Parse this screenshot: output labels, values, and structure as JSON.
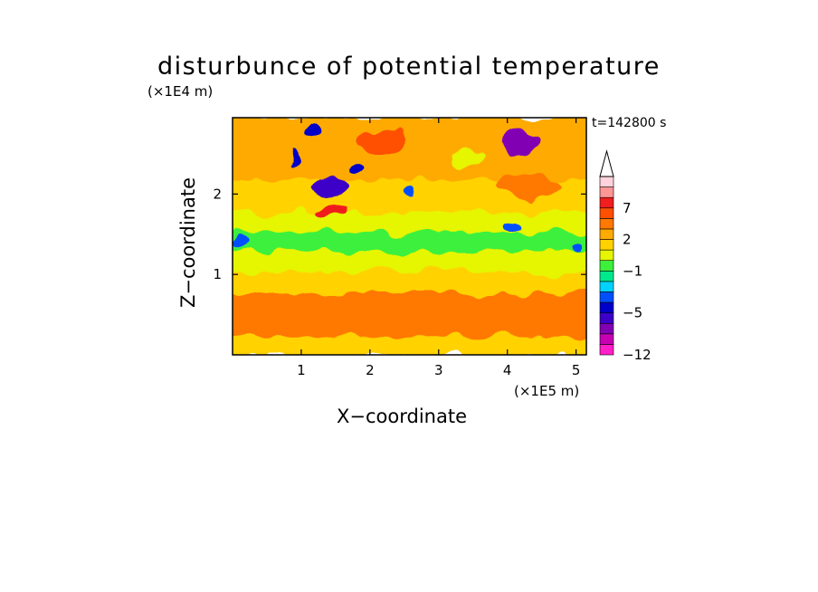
{
  "chart_data": {
    "type": "heatmap",
    "title": "disturbunce of potential temperature",
    "time_label": "t=142800 s",
    "xlabel": "X−coordinate",
    "ylabel": "Z−coordinate",
    "x_unit": "(×1E5 m)",
    "y_unit": "(×1E4 m)",
    "xlim": [
      0,
      5.15
    ],
    "ylim": [
      0,
      2.95
    ],
    "x_ticks": [
      "1",
      "2",
      "3",
      "4",
      "5"
    ],
    "y_ticks": [
      "1",
      "2"
    ],
    "colorbar": {
      "levels": [
        -12,
        -11,
        -9,
        -7,
        -5,
        -4,
        -3,
        -2,
        -1,
        0,
        1,
        2,
        3,
        5,
        7,
        9,
        11
      ],
      "tick_labels": [
        "−12",
        "−5",
        "−1",
        "2",
        "7"
      ],
      "colors": [
        "#ff1ec8",
        "#c800b4",
        "#8200b4",
        "#3c00c8",
        "#0000c8",
        "#0050ff",
        "#00d2ff",
        "#00e88c",
        "#3cf03c",
        "#e6f500",
        "#ffd200",
        "#ffaa00",
        "#ff7800",
        "#ff5000",
        "#f01e1e",
        "#ff9696",
        "#ffd2dc"
      ],
      "extend": "max"
    },
    "features": [
      {
        "kind": "band",
        "z_from": 0.0,
        "z_to": 0.25,
        "value": 1
      },
      {
        "kind": "band",
        "z_from": 0.25,
        "z_to": 0.8,
        "value": 3
      },
      {
        "kind": "band",
        "z_from": 0.8,
        "z_to": 1.05,
        "value": 1
      },
      {
        "kind": "band",
        "z_from": 1.05,
        "z_to": 1.3,
        "value": 0
      },
      {
        "kind": "band",
        "z_from": 1.3,
        "z_to": 1.55,
        "value": -1
      },
      {
        "kind": "band",
        "z_from": 1.55,
        "z_to": 1.8,
        "value": 0
      },
      {
        "kind": "band",
        "z_from": 1.8,
        "z_to": 2.2,
        "value": 1
      },
      {
        "kind": "band",
        "z_from": 2.2,
        "z_to": 2.95,
        "value": 2
      },
      {
        "kind": "blob",
        "x": 4.15,
        "z": 2.65,
        "rx": 0.3,
        "rz": 0.17,
        "value": -9
      },
      {
        "kind": "blob",
        "x": 1.45,
        "z": 2.1,
        "rx": 0.25,
        "rz": 0.1,
        "value": -7
      },
      {
        "kind": "blob",
        "x": 1.2,
        "z": 2.8,
        "rx": 0.12,
        "rz": 0.1,
        "value": -5
      },
      {
        "kind": "blob",
        "x": 1.45,
        "z": 1.8,
        "rx": 0.25,
        "rz": 0.08,
        "value": 7
      },
      {
        "kind": "blob",
        "x": 2.2,
        "z": 2.65,
        "rx": 0.4,
        "rz": 0.15,
        "value": 5
      },
      {
        "kind": "blob",
        "x": 4.3,
        "z": 2.1,
        "rx": 0.45,
        "rz": 0.17,
        "value": 4
      },
      {
        "kind": "blob",
        "x": 4.1,
        "z": 1.6,
        "rx": 0.15,
        "rz": 0.06,
        "value": -4
      },
      {
        "kind": "blob",
        "x": 0.9,
        "z": 2.45,
        "rx": 0.07,
        "rz": 0.1,
        "value": -5
      },
      {
        "kind": "blob",
        "x": 1.75,
        "z": 2.35,
        "rx": 0.1,
        "rz": 0.07,
        "value": -5
      },
      {
        "kind": "blob",
        "x": 2.6,
        "z": 2.05,
        "rx": 0.1,
        "rz": 0.07,
        "value": -4
      },
      {
        "kind": "blob",
        "x": 0.1,
        "z": 1.4,
        "rx": 0.12,
        "rz": 0.07,
        "value": -4
      },
      {
        "kind": "blob",
        "x": 5.0,
        "z": 1.35,
        "rx": 0.08,
        "rz": 0.07,
        "value": -4
      },
      {
        "kind": "blob",
        "x": 2.6,
        "z": 0.6,
        "rx": 0.6,
        "rz": 0.14,
        "value": 4
      },
      {
        "kind": "blob",
        "x": 4.3,
        "z": 0.45,
        "rx": 0.6,
        "rz": 0.13,
        "value": 4
      },
      {
        "kind": "blob",
        "x": 3.4,
        "z": 2.45,
        "rx": 0.3,
        "rz": 0.1,
        "value": 0
      }
    ]
  }
}
